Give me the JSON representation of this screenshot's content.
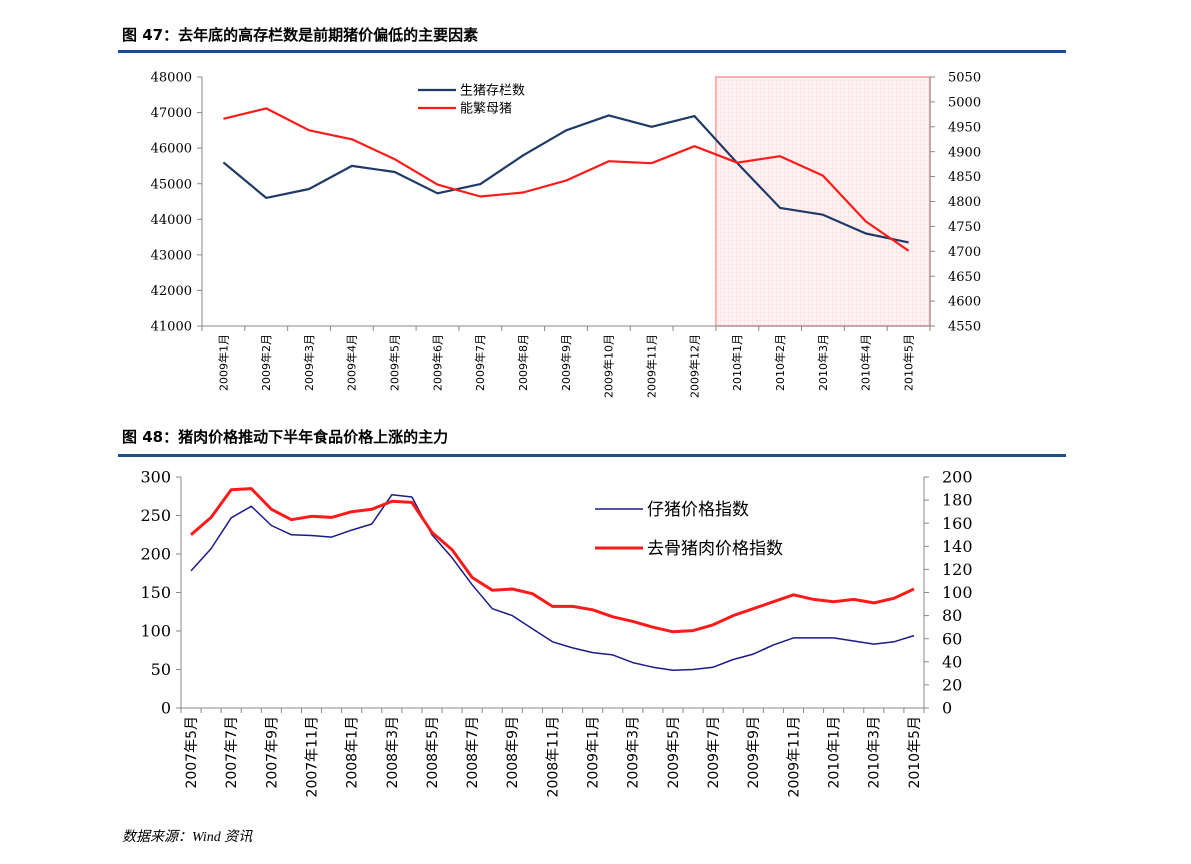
{
  "figures": [
    {
      "title": "图 47：去年底的高存栏数是前期猪价偏低的主要因素"
    },
    {
      "title": "图 48：猪肉价格推动下半年食品价格上涨的主力"
    }
  ],
  "source": "数据来源：Wind 资讯",
  "colors": {
    "rule": "#1a4f8a",
    "navy": "#1f3a68",
    "red": "#ff1a1a",
    "blue": "#1a1a8c",
    "highlight": "#ff9999"
  },
  "chart_data": [
    {
      "type": "line",
      "title": "",
      "categories": [
        "2009年1月",
        "2009年2月",
        "2009年3月",
        "2009年4月",
        "2009年5月",
        "2009年6月",
        "2009年7月",
        "2009年8月",
        "2009年9月",
        "2009年10月",
        "2009年11月",
        "2009年12月",
        "2010年1月",
        "2010年2月",
        "2010年3月",
        "2010年4月",
        "2010年5月"
      ],
      "y_left": {
        "ylim": [
          41000,
          48000
        ],
        "ticks": [
          41000,
          42000,
          43000,
          44000,
          45000,
          46000,
          47000,
          48000
        ]
      },
      "y_right": {
        "ylim": [
          4550,
          5050
        ],
        "ticks": [
          4550,
          4600,
          4650,
          4700,
          4750,
          4800,
          4850,
          4900,
          4950,
          5000,
          5050
        ]
      },
      "series": [
        {
          "name": "生猪存栏数",
          "axis": "left",
          "color": "#1f3a68",
          "values": [
            45600,
            44600,
            44850,
            45500,
            45330,
            44730,
            44990,
            45800,
            46500,
            46920,
            46600,
            46900,
            45580,
            44320,
            44130,
            43600,
            43350
          ]
        },
        {
          "name": "能繁母猪",
          "axis": "right",
          "color": "#ff1a1a",
          "values": [
            4966,
            4987,
            4943,
            4925,
            4885,
            4834,
            4810,
            4818,
            4842,
            4881,
            4877,
            4911,
            4878,
            4891,
            4852,
            4760,
            4701
          ]
        }
      ],
      "highlight": {
        "from": "2010年1月",
        "to": "2010年5月"
      },
      "legend": "top-center",
      "grid": false
    },
    {
      "type": "line",
      "title": "",
      "categories": [
        "2007年5月",
        "2007年6月",
        "2007年7月",
        "2007年8月",
        "2007年9月",
        "2007年10月",
        "2007年11月",
        "2007年12月",
        "2008年1月",
        "2008年2月",
        "2008年3月",
        "2008年4月",
        "2008年5月",
        "2008年6月",
        "2008年7月",
        "2008年8月",
        "2008年9月",
        "2008年10月",
        "2008年11月",
        "2008年12月",
        "2009年1月",
        "2009年2月",
        "2009年3月",
        "2009年4月",
        "2009年5月",
        "2009年6月",
        "2009年7月",
        "2009年8月",
        "2009年9月",
        "2009年10月",
        "2009年11月",
        "2009年12月",
        "2010年1月",
        "2010年2月",
        "2010年3月",
        "2010年4月",
        "2010年5月"
      ],
      "tick_labels": [
        "2007年5月",
        "2007年7月",
        "2007年9月",
        "2007年11月",
        "2008年1月",
        "2008年3月",
        "2008年5月",
        "2008年7月",
        "2008年9月",
        "2008年11月",
        "2009年1月",
        "2009年3月",
        "2009年5月",
        "2009年7月",
        "2009年9月",
        "2009年11月",
        "2010年1月",
        "2010年3月",
        "2010年5月"
      ],
      "y_left": {
        "ylim": [
          0,
          300
        ],
        "ticks": [
          0,
          50,
          100,
          150,
          200,
          250,
          300
        ]
      },
      "y_right": {
        "ylim": [
          0,
          200
        ],
        "ticks": [
          0,
          20,
          40,
          60,
          80,
          100,
          120,
          140,
          160,
          180,
          200
        ]
      },
      "series": [
        {
          "name": "仔猪价格指数",
          "axis": "left",
          "color": "#1a1a8c",
          "values": [
            178,
            207,
            247,
            262,
            237,
            225,
            224,
            222,
            231,
            239,
            277,
            274,
            225,
            195,
            160,
            129,
            120,
            103,
            86,
            78,
            72,
            69,
            59,
            53,
            49,
            50,
            53,
            63,
            70,
            82,
            91,
            91,
            91,
            87,
            83,
            86,
            94
          ]
        },
        {
          "name": "去骨猪肉价格指数",
          "axis": "right",
          "color": "#ff1a1a",
          "values": [
            150,
            165,
            189,
            190,
            172,
            163,
            166,
            165,
            170,
            172,
            179,
            178,
            152,
            137,
            113,
            102,
            103,
            99,
            88,
            88,
            85,
            79,
            75,
            70,
            66,
            67,
            72,
            80,
            86,
            92,
            98,
            94,
            92,
            94,
            91,
            95,
            103
          ]
        }
      ],
      "legend": "top-right",
      "grid": false
    }
  ]
}
